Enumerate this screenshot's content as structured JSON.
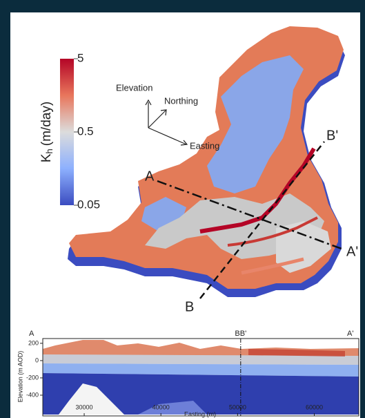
{
  "figure": {
    "colorbar": {
      "symbol": "K",
      "subscript": "h",
      "unit": "(m/day)",
      "range": [
        0.05,
        5
      ],
      "log": true,
      "ticks": [
        {
          "value": 5,
          "label": "5"
        },
        {
          "value": 0.5,
          "label": "0.5"
        },
        {
          "value": 0.05,
          "label": "0.05"
        }
      ]
    },
    "compass": {
      "up": "Elevation",
      "north": "Northing",
      "east": "Easting"
    },
    "section_lines": {
      "a": "A",
      "a_end": "A'",
      "b": "B",
      "b_end": "B'"
    },
    "cross_section": {
      "y_label": "Elevation (m AOD)",
      "x_label": "Easting (m)",
      "xlim": [
        24600,
        65800
      ],
      "ylim": [
        -640,
        255
      ],
      "xticks": [
        30000,
        40000,
        50000,
        60000
      ],
      "yticks": [
        200,
        0,
        -200,
        -400
      ],
      "start_label": "A",
      "end_label": "A'",
      "crossing": {
        "value": 50400,
        "label": "BB'"
      }
    }
  }
}
